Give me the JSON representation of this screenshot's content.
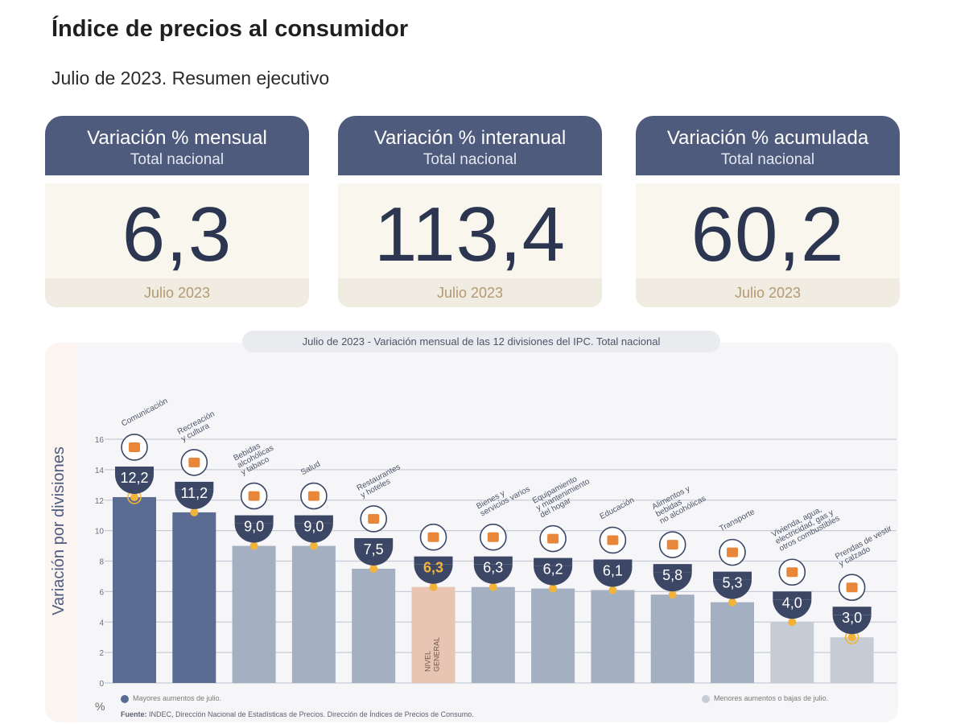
{
  "header": {
    "title": "Índice de precios al consumidor",
    "subtitle": "Julio de 2023. Resumen ejecutivo"
  },
  "cards": [
    {
      "title": "Variación % mensual",
      "scope": "Total nacional",
      "value": "6,3",
      "period": "Julio 2023"
    },
    {
      "title": "Variación % interanual",
      "scope": "Total nacional",
      "value": "113,4",
      "period": "Julio 2023"
    },
    {
      "title": "Variación % acumulada",
      "scope": "Total nacional",
      "value": "60,2",
      "period": "Julio 2023"
    }
  ],
  "chart_data": {
    "type": "bar",
    "title": "Julio de 2023 - Variación mensual de las 12 divisiones del IPC. Total nacional",
    "ylabel": "Variación por divisiones",
    "yunit": "%",
    "ylim": [
      0,
      16
    ],
    "yticks": [
      0,
      2,
      4,
      6,
      8,
      10,
      12,
      14,
      16
    ],
    "grid": true,
    "categories": [
      "Comunicación",
      "Recreación y cultura",
      "Bebidas alcohólicas y tabaco",
      "Salud",
      "Restaurantes y hoteles",
      "NIVEL GENERAL",
      "Bienes y servicios varios",
      "Equipamiento y mantenimiento del hogar",
      "Educación",
      "Alimentos y bebidas no alcohólicas",
      "Transporte",
      "Vivienda, agua, electricidad, gas y otros combustibles",
      "Prendas de vestir y calzado"
    ],
    "label_lines": [
      [
        "Comunicación"
      ],
      [
        "Recreación",
        "y cultura"
      ],
      [
        "Bebidas",
        "alcohólicas",
        "y tabaco"
      ],
      [
        "Salud"
      ],
      [
        "Restaurantes",
        "y hoteles"
      ],
      [],
      [
        "Bienes y",
        "servicios varios"
      ],
      [
        "Equipamiento",
        "y mantenimiento",
        "del hogar"
      ],
      [
        "Educación"
      ],
      [
        "Alimentos y",
        "bebidas",
        "no alcohólicas"
      ],
      [
        "Transporte"
      ],
      [
        "Vivienda, agua,",
        "electricidad, gas y",
        "otros combustibles"
      ],
      [
        "Prendas de vestir",
        "y calzado"
      ]
    ],
    "in_bar_label": [
      "",
      "",
      "",
      "",
      "",
      "NIVEL GENERAL",
      "",
      "",
      "",
      "",
      "",
      "",
      ""
    ],
    "values": [
      12.2,
      11.2,
      9.0,
      9.0,
      7.5,
      6.3,
      6.3,
      6.2,
      6.1,
      5.8,
      5.3,
      4.0,
      3.0
    ],
    "value_labels": [
      "12,2",
      "11,2",
      "9,0",
      "9,0",
      "7,5",
      "6,3",
      "6,3",
      "6,2",
      "6,1",
      "5,8",
      "5,3",
      "4,0",
      "3,0"
    ],
    "bar_groups": [
      "high",
      "high",
      "mid",
      "mid",
      "mid",
      "general",
      "mid",
      "mid",
      "mid",
      "mid",
      "mid",
      "low",
      "low"
    ],
    "highlighted": [
      true,
      false,
      false,
      false,
      false,
      false,
      false,
      false,
      false,
      false,
      false,
      false,
      true
    ],
    "icons": [
      "phone-icon",
      "umbrella-sun-icon",
      "bottles-icon",
      "medical-cross-icon",
      "dining-icon",
      "basket-icon",
      "tools-icon",
      "washing-machine-icon",
      "book-icon",
      "chicken-icon",
      "bus-icon",
      "lightbulb-icon",
      "shirt-icon"
    ],
    "colors": {
      "high": "#5a6c91",
      "mid": "#a4b0c1",
      "general": "#e8c4b2",
      "low": "#c6ccd5",
      "badge": "#3c4766",
      "dot": "#f2b33b",
      "accent": "#e8873a"
    },
    "legend": {
      "high": "Mayores aumentos de julio.",
      "low": "Menores aumentos o bajas de julio."
    },
    "source_label": "Fuente:",
    "source_text": "INDEC, Dirección Nacional de Estadísticas de Precios. Dirección de Índices de Precios de Consumo."
  }
}
